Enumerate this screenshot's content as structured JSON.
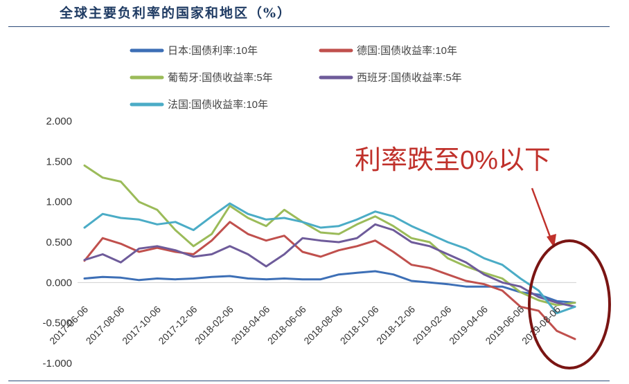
{
  "chart_data": {
    "type": "line",
    "title": "全球主要负利率的国家和地区（%）",
    "ylim": [
      -1.0,
      2.0
    ],
    "yticks": [
      "2.000",
      "1.500",
      "1.000",
      "0.500",
      "0.000",
      "-0.500",
      "-1.000"
    ],
    "ytick_values": [
      2.0,
      1.5,
      1.0,
      0.5,
      0.0,
      -0.5,
      -1.0
    ],
    "x": [
      "2017-06-06",
      "2017-07-06",
      "2017-08-06",
      "2017-09-06",
      "2017-10-06",
      "2017-11-06",
      "2017-12-06",
      "2018-01-06",
      "2018-02-06",
      "2018-03-06",
      "2018-04-06",
      "2018-05-06",
      "2018-06-06",
      "2018-07-06",
      "2018-08-06",
      "2018-09-06",
      "2018-10-06",
      "2018-11-06",
      "2018-12-06",
      "2019-01-06",
      "2019-02-06",
      "2019-03-06",
      "2019-04-06",
      "2019-05-06",
      "2019-06-06",
      "2019-07-06",
      "2019-08-06",
      "2019-08-30"
    ],
    "xticks": [
      "2017-06-06",
      "2017-08-06",
      "2017-10-06",
      "2017-12-06",
      "2018-02-06",
      "2018-04-06",
      "2018-06-06",
      "2018-08-06",
      "2018-10-06",
      "2018-12-06",
      "2019-02-06",
      "2019-04-06",
      "2019-06-06",
      "2019-08-06"
    ],
    "grid": false,
    "legend_position": "top",
    "series": [
      {
        "name": "日本:国债利率:10年",
        "color": "#3d6fb6",
        "values": [
          0.05,
          0.07,
          0.06,
          0.03,
          0.05,
          0.04,
          0.05,
          0.07,
          0.08,
          0.05,
          0.04,
          0.05,
          0.04,
          0.04,
          0.1,
          0.12,
          0.14,
          0.1,
          0.02,
          0.0,
          -0.02,
          -0.05,
          -0.05,
          -0.05,
          -0.12,
          -0.15,
          -0.23,
          -0.25
        ]
      },
      {
        "name": "德国:国债收益率:10年",
        "color": "#c0504d",
        "values": [
          0.27,
          0.55,
          0.48,
          0.38,
          0.43,
          0.38,
          0.35,
          0.52,
          0.75,
          0.6,
          0.52,
          0.58,
          0.38,
          0.32,
          0.4,
          0.45,
          0.52,
          0.38,
          0.22,
          0.18,
          0.1,
          0.02,
          -0.02,
          -0.1,
          -0.3,
          -0.35,
          -0.6,
          -0.7
        ]
      },
      {
        "name": "葡萄牙:国债收益率:5年",
        "color": "#9bbb59",
        "values": [
          1.45,
          1.3,
          1.25,
          1.0,
          0.9,
          0.65,
          0.45,
          0.6,
          0.95,
          0.8,
          0.7,
          0.9,
          0.75,
          0.62,
          0.6,
          0.72,
          0.82,
          0.7,
          0.55,
          0.5,
          0.3,
          0.2,
          0.12,
          0.05,
          -0.12,
          -0.22,
          -0.28,
          -0.25
        ]
      },
      {
        "name": "西班牙:国债收益率:5年",
        "color": "#6e5b9a",
        "values": [
          0.28,
          0.35,
          0.25,
          0.42,
          0.45,
          0.4,
          0.32,
          0.35,
          0.45,
          0.35,
          0.2,
          0.35,
          0.55,
          0.52,
          0.5,
          0.55,
          0.72,
          0.65,
          0.5,
          0.45,
          0.35,
          0.25,
          0.1,
          0.0,
          -0.05,
          -0.18,
          -0.25,
          -0.3
        ]
      },
      {
        "name": "法国:国债收益率:10年",
        "color": "#4bacc6",
        "values": [
          0.68,
          0.85,
          0.8,
          0.78,
          0.72,
          0.75,
          0.65,
          0.82,
          0.98,
          0.85,
          0.78,
          0.8,
          0.75,
          0.68,
          0.7,
          0.78,
          0.88,
          0.82,
          0.7,
          0.6,
          0.5,
          0.42,
          0.3,
          0.22,
          0.05,
          -0.1,
          -0.38,
          -0.3
        ]
      }
    ],
    "annotation": {
      "text": "利率跌至0%以下",
      "color": "#c0312b"
    }
  }
}
